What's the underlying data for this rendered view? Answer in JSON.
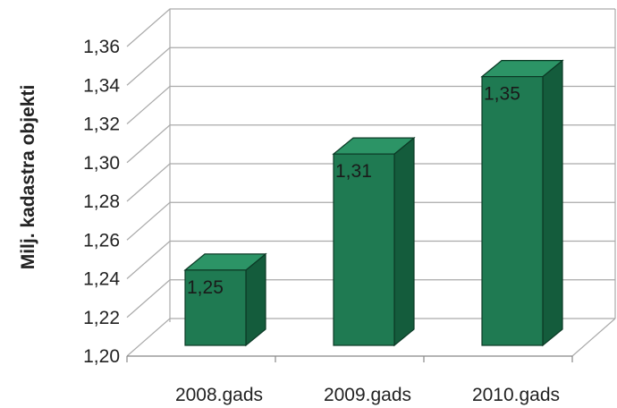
{
  "chart_data": {
    "type": "bar",
    "categories": [
      "2008.gads",
      "2009.gads",
      "2010.gads"
    ],
    "values": [
      1.25,
      1.31,
      1.35
    ],
    "data_labels": [
      "1,25",
      "1,31",
      "1,35"
    ],
    "ylabel": "Milj. kadastra objekti",
    "xlabel": "",
    "ylim": [
      1.2,
      1.36
    ],
    "yticks": [
      "1,20",
      "1,22",
      "1,24",
      "1,26",
      "1,28",
      "1,30",
      "1,32",
      "1,34",
      "1,36"
    ],
    "grid": true,
    "legend": "none",
    "style": "3d-column",
    "colors": {
      "bar_front": "#1f7a52",
      "bar_side": "#145c3c",
      "bar_top": "#2c9466",
      "bar_edge": "#0c3a26",
      "grid": "#aaaaaa"
    }
  }
}
